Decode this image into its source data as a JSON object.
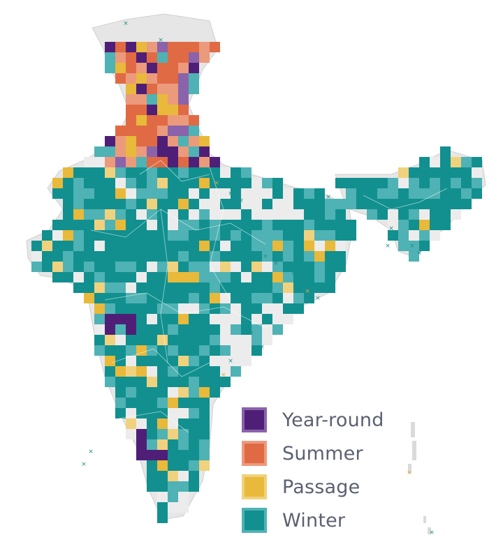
{
  "map": {
    "colors": {
      "land": "#e2e2e2",
      "land_light": "#ececec",
      "yearround": "#4f1f78",
      "yearround_light": "#8a63aa",
      "summer": "#e06a44",
      "summer_light": "#ec9a7c",
      "passage": "#e8b93a",
      "passage_light": "#f0d27e",
      "winter": "#11908f",
      "winter_light": "#4fb2b4",
      "marker": "#1e8c8a",
      "marker_alt": "#e8a43a"
    }
  },
  "legend": {
    "items": [
      {
        "label": "Year-round",
        "fill": "#4f1f78",
        "border": "#8a63aa"
      },
      {
        "label": "Summer",
        "fill": "#e06a44",
        "border": "#ec9a7c"
      },
      {
        "label": "Passage",
        "fill": "#e8b93a",
        "border": "#f0d27e"
      },
      {
        "label": "Winter",
        "fill": "#11908f",
        "border": "#4fb2b4"
      }
    ]
  }
}
